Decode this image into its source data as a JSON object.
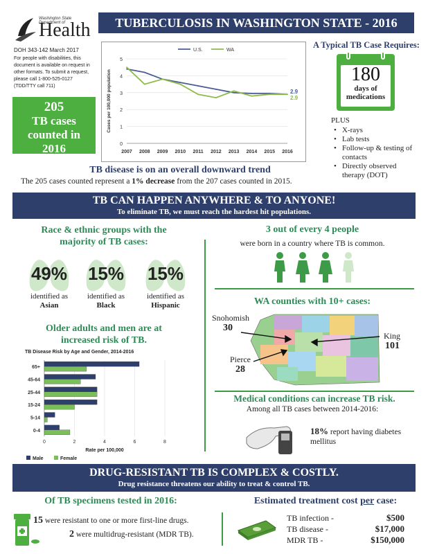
{
  "header": {
    "agency_line1": "Washington State Department of",
    "agency_name": "Health",
    "doc_id": "DOH 343-142 March 2017",
    "accessibility": "For people with disabilities, this document is available on request in other formats. To submit a request, please call 1-800-525-0127 (TDD/TTY call 711)",
    "title": "TUBERCULOSIS IN WASHINGTON STATE - 2016",
    "cases_count": "205",
    "cases_text": "TB cases counted in 2016"
  },
  "chart_data": [
    {
      "type": "line",
      "x": [
        2007,
        2008,
        2009,
        2010,
        2011,
        2012,
        2013,
        2014,
        2015,
        2016
      ],
      "series": [
        {
          "name": "U.S.",
          "color": "#4a5c94",
          "values": [
            4.4,
            4.2,
            3.8,
            3.6,
            3.4,
            3.2,
            3.0,
            2.95,
            2.95,
            2.9
          ]
        },
        {
          "name": "WA",
          "color": "#8dbb4a",
          "values": [
            4.5,
            3.5,
            3.8,
            3.5,
            2.9,
            2.7,
            3.1,
            2.8,
            2.9,
            2.9
          ]
        }
      ],
      "ylabel": "Cases per 100,000 population",
      "ylim": [
        0,
        5
      ],
      "yticks": [
        0,
        1,
        2,
        3,
        4,
        5
      ],
      "end_labels": [
        "2.9",
        "2.9"
      ],
      "legend": "top"
    },
    {
      "type": "bar",
      "orientation": "horizontal",
      "title": "TB Disease Risk by Age and Gender, 2014-2016",
      "categories": [
        "65+",
        "45-64",
        "25-44",
        "15-24",
        "5-14",
        "0-4"
      ],
      "series": [
        {
          "name": "Male",
          "color": "#2f3f6b",
          "values": [
            6.3,
            3.4,
            3.5,
            3.5,
            0.7,
            1.0
          ]
        },
        {
          "name": "Female",
          "color": "#7bbf5a",
          "values": [
            2.8,
            2.4,
            3.5,
            2.0,
            0.2,
            1.7
          ]
        }
      ],
      "xlabel": "Rate per 100,000",
      "xlim": [
        0,
        8
      ],
      "xticks": [
        0,
        2,
        4,
        6,
        8
      ],
      "legend": "bottom"
    }
  ],
  "typical_case": {
    "heading": "A Typical TB Case Requires:",
    "number": "180",
    "unit": "days of medications",
    "plus": "PLUS",
    "items": [
      "X-rays",
      "Lab tests",
      "Follow-up & testing of contacts",
      "Directly observed therapy (DOT)"
    ]
  },
  "trend": {
    "heading": "TB disease is on an overall downward trend",
    "text_a": "The 205 cases counted represent a ",
    "text_bold": "1% decrease",
    "text_b": " from the 207 cases counted in 2015."
  },
  "banner1": {
    "title": "TB CAN HAPPEN ANYWHERE & TO ANYONE!",
    "subtitle": "To eliminate TB, we must reach the hardest hit populations."
  },
  "race": {
    "heading": "Race & ethnic groups with the majority of TB cases:",
    "groups": [
      {
        "pct": "49%",
        "text": "identified as",
        "name": "Asian"
      },
      {
        "pct": "15%",
        "text": "identified as",
        "name": "Black"
      },
      {
        "pct": "15%",
        "text": "identified as",
        "name": "Hispanic"
      }
    ]
  },
  "older": {
    "heading": "Older adults and men are at increased risk of TB."
  },
  "born": {
    "heading": "3 out of every 4 people",
    "text": "were born in a country where TB is common."
  },
  "counties": {
    "heading": "WA counties with 10+ cases:",
    "items": [
      {
        "name": "Snohomish",
        "count": "30"
      },
      {
        "name": "King",
        "count": "101"
      },
      {
        "name": "Pierce",
        "count": "28"
      }
    ]
  },
  "medical": {
    "heading": "Medical conditions can increase TB risk.",
    "subtitle": "Among all TB cases between 2014-2016:",
    "pct": "18%",
    "text": " report having diabetes mellitus"
  },
  "banner2": {
    "title": "DRUG-RESISTANT TB IS COMPLEX & COSTLY.",
    "subtitle": "Drug resistance threatens our ability to treat & control TB."
  },
  "specimens": {
    "heading": "Of TB specimens tested in 2016:",
    "line1_num": "15",
    "line1_text": " were resistant to one or more first-line drugs.",
    "line2_num": "2",
    "line2_text": " were multidrug-resistant (MDR TB)."
  },
  "cost": {
    "heading_a": "Estimated treatment cost ",
    "heading_u": "per",
    "heading_b": " case:",
    "rows": [
      {
        "label": "TB infection -",
        "value": "$500"
      },
      {
        "label": "TB disease -",
        "value": "$17,000"
      },
      {
        "label": "MDR TB -",
        "value": "$150,000"
      }
    ]
  },
  "colors": {
    "navy": "#2f3f6b",
    "green": "#2e8b57",
    "bright_green": "#4caf3f"
  }
}
